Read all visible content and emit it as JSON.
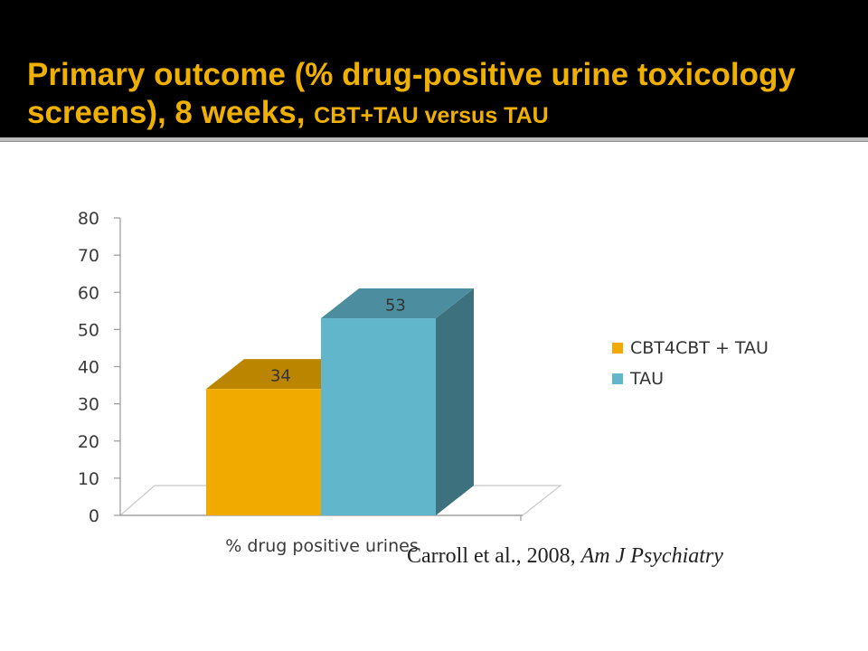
{
  "slide": {
    "title_main": "Primary outcome (% drug-positive urine toxicology screens), 8 weeks,",
    "title_sub": "CBT+TAU versus TAU",
    "citation_prefix": "Carroll et al., 2008,",
    "citation_journal": "Am J Psychiatry"
  },
  "colors": {
    "title": "#f0b000",
    "background_band": "#000000"
  },
  "chart_data": {
    "type": "bar",
    "categories": [
      "% drug positive urines"
    ],
    "series": [
      {
        "name": "CBT4CBT + TAU",
        "values": [
          34
        ],
        "color": "#f0aa00"
      },
      {
        "name": "TAU",
        "values": [
          53
        ],
        "color": "#62b6cc"
      }
    ],
    "data_labels": [
      "34",
      "53"
    ],
    "yticks": [
      "0",
      "10",
      "20",
      "30",
      "40",
      "50",
      "60",
      "70",
      "80"
    ],
    "ylim": [
      0,
      80
    ],
    "grid": false,
    "legend": "right",
    "style": "3d-column"
  }
}
